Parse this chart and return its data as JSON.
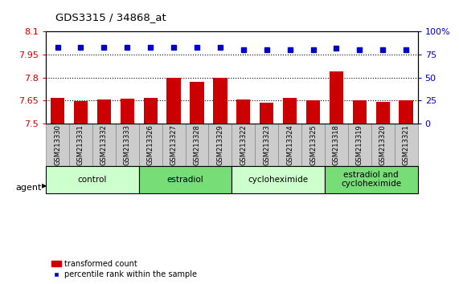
{
  "title": "GDS3315 / 34868_at",
  "samples": [
    "GSM213330",
    "GSM213331",
    "GSM213332",
    "GSM213333",
    "GSM213326",
    "GSM213327",
    "GSM213328",
    "GSM213329",
    "GSM213322",
    "GSM213323",
    "GSM213324",
    "GSM213325",
    "GSM213318",
    "GSM213319",
    "GSM213320",
    "GSM213321"
  ],
  "bar_values": [
    7.67,
    7.645,
    7.655,
    7.665,
    7.67,
    7.8,
    7.77,
    7.8,
    7.655,
    7.635,
    7.67,
    7.65,
    7.84,
    7.65,
    7.64,
    7.65
  ],
  "percentile_values": [
    83,
    83,
    83,
    83,
    83,
    83,
    83,
    83,
    80,
    80,
    80,
    80,
    82,
    80,
    80,
    80
  ],
  "bar_color": "#cc0000",
  "dot_color": "#0000cc",
  "ylim_left": [
    7.5,
    8.1
  ],
  "ylim_right": [
    0,
    100
  ],
  "yticks_left": [
    7.5,
    7.65,
    7.8,
    7.95,
    8.1
  ],
  "ytick_labels_left": [
    "7.5",
    "7.65",
    "7.8",
    "7.95",
    "8.1"
  ],
  "yticks_right": [
    0,
    25,
    50,
    75,
    100
  ],
  "ytick_labels_right": [
    "0",
    "25",
    "50",
    "75",
    "100%"
  ],
  "hlines": [
    7.65,
    7.8,
    7.95
  ],
  "groups": [
    {
      "label": "control",
      "start": 0,
      "end": 4,
      "color": "#ccffcc"
    },
    {
      "label": "estradiol",
      "start": 4,
      "end": 8,
      "color": "#77dd77"
    },
    {
      "label": "cycloheximide",
      "start": 8,
      "end": 12,
      "color": "#ccffcc"
    },
    {
      "label": "estradiol and\ncycloheximide",
      "start": 12,
      "end": 16,
      "color": "#77dd77"
    }
  ],
  "agent_label": "agent",
  "legend_bar_label": "transformed count",
  "legend_dot_label": "percentile rank within the sample",
  "bg_color": "#ffffff",
  "plot_bg_color": "#ffffff",
  "tick_label_color_left": "#cc0000",
  "tick_label_color_right": "#0000cc",
  "bar_width": 0.6,
  "sample_cell_bg": "#cccccc",
  "sample_cell_border": "#888888"
}
